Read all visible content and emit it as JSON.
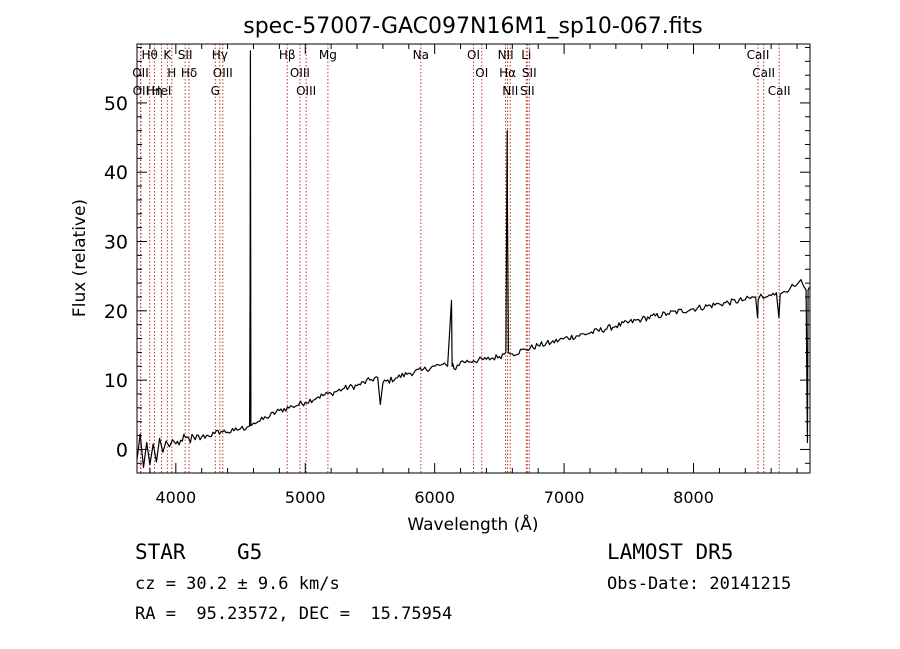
{
  "chart_data": {
    "type": "line",
    "title": "spec-57007-GAC097N16M1_sp10-067.fits",
    "xlabel": "Wavelength (Å)",
    "ylabel": "Flux (relative)",
    "xlim": [
      3700,
      8900
    ],
    "ylim": [
      -3.4,
      58.5
    ],
    "x_ticks": [
      4000,
      5000,
      6000,
      7000,
      8000
    ],
    "y_ticks": [
      0,
      10,
      20,
      30,
      40,
      50
    ],
    "grid": false,
    "series": [
      {
        "x": [
          3700,
          3725,
          3750,
          3775,
          3800,
          3825,
          3850,
          3875,
          3900,
          3925,
          3950,
          3975,
          4000,
          4050,
          4100,
          4150,
          4200,
          4250,
          4300,
          4350,
          4400,
          4450,
          4500,
          4550,
          4570,
          4574,
          4576,
          4580,
          4600,
          4650,
          4700,
          4800,
          4900,
          5000,
          5100,
          5200,
          5300,
          5400,
          5500,
          5560,
          5580,
          5600,
          5700,
          5800,
          5900,
          6000,
          6050,
          6100,
          6130,
          6135,
          6140,
          6150,
          6200,
          6300,
          6400,
          6500,
          6550,
          6555,
          6560,
          6563,
          6566,
          6570,
          6580,
          6600,
          6700,
          6800,
          6900,
          7000,
          7200,
          7400,
          7600,
          7800,
          8000,
          8200,
          8400,
          8480,
          8495,
          8500,
          8520,
          8540,
          8560,
          8600,
          8640,
          8660,
          8670,
          8700,
          8750,
          8800,
          8830,
          8850,
          8870,
          8880,
          8885,
          8890,
          8895
        ],
        "y": [
          -1.5,
          2.2,
          -2.6,
          1.0,
          -2.2,
          0.8,
          -1.8,
          1.6,
          -0.4,
          1.2,
          0.4,
          1.4,
          0.8,
          1.2,
          1.6,
          1.4,
          1.8,
          2.0,
          2.3,
          2.6,
          2.5,
          2.7,
          3.0,
          3.2,
          3.4,
          23.0,
          57.5,
          3.4,
          3.8,
          4.1,
          4.6,
          5.6,
          6.2,
          6.8,
          7.6,
          8.1,
          8.8,
          9.2,
          10.0,
          10.4,
          6.5,
          9.6,
          10.3,
          11.0,
          11.4,
          12.0,
          12.2,
          12.0,
          21.5,
          12.0,
          12.4,
          11.6,
          12.6,
          12.8,
          13.0,
          13.4,
          14.0,
          30.0,
          46.0,
          33.5,
          26.0,
          14.0,
          13.8,
          13.8,
          14.4,
          15.0,
          15.4,
          16.0,
          16.8,
          17.8,
          18.8,
          19.6,
          20.3,
          21.0,
          21.6,
          22.0,
          19.0,
          21.6,
          22.4,
          21.8,
          22.0,
          22.2,
          22.6,
          19.0,
          22.4,
          22.8,
          23.4,
          23.8,
          24.5,
          23.6,
          23.0,
          1.0,
          23.0,
          23.2,
          23.4
        ]
      }
    ],
    "lines": [
      {
        "label": "Hθ",
        "x": 3798
      },
      {
        "label": "OII",
        "x": 3727
      },
      {
        "label": "OII",
        "x": 3730
      },
      {
        "label": "Hη",
        "x": 3835
      },
      {
        "label": "HeI",
        "x": 3889
      },
      {
        "label": "K",
        "x": 3934
      },
      {
        "label": "H",
        "x": 3969
      },
      {
        "label": "SII",
        "x": 4072
      },
      {
        "label": "Hδ",
        "x": 4102
      },
      {
        "label": "Hγ",
        "x": 4340
      },
      {
        "label": "OIII",
        "x": 4363
      },
      {
        "label": "G",
        "x": 4305
      },
      {
        "label": "Hβ",
        "x": 4861
      },
      {
        "label": "OIII",
        "x": 4959
      },
      {
        "label": "OIII",
        "x": 5007
      },
      {
        "label": "Mg",
        "x": 5175
      },
      {
        "label": "Na",
        "x": 5893
      },
      {
        "label": "OI",
        "x": 6300
      },
      {
        "label": "OI",
        "x": 6364
      },
      {
        "label": "NII",
        "x": 6548
      },
      {
        "label": "Hα",
        "x": 6563
      },
      {
        "label": "NII",
        "x": 6584
      },
      {
        "label": "Li",
        "x": 6708
      },
      {
        "label": "SII",
        "x": 6716
      },
      {
        "label": "SII",
        "x": 6731
      },
      {
        "label": "CaII",
        "x": 8498
      },
      {
        "label": "CaII",
        "x": 8542
      },
      {
        "label": "CaII",
        "x": 8662
      }
    ]
  },
  "info": {
    "class": "STAR",
    "subclass": "G5",
    "survey": "LAMOST DR5",
    "cz": "cz = 30.2 ± 9.6 km/s",
    "obs_date": "Obs-Date: 20141215",
    "coords": "RA =  95.23572, DEC =  15.75954"
  }
}
